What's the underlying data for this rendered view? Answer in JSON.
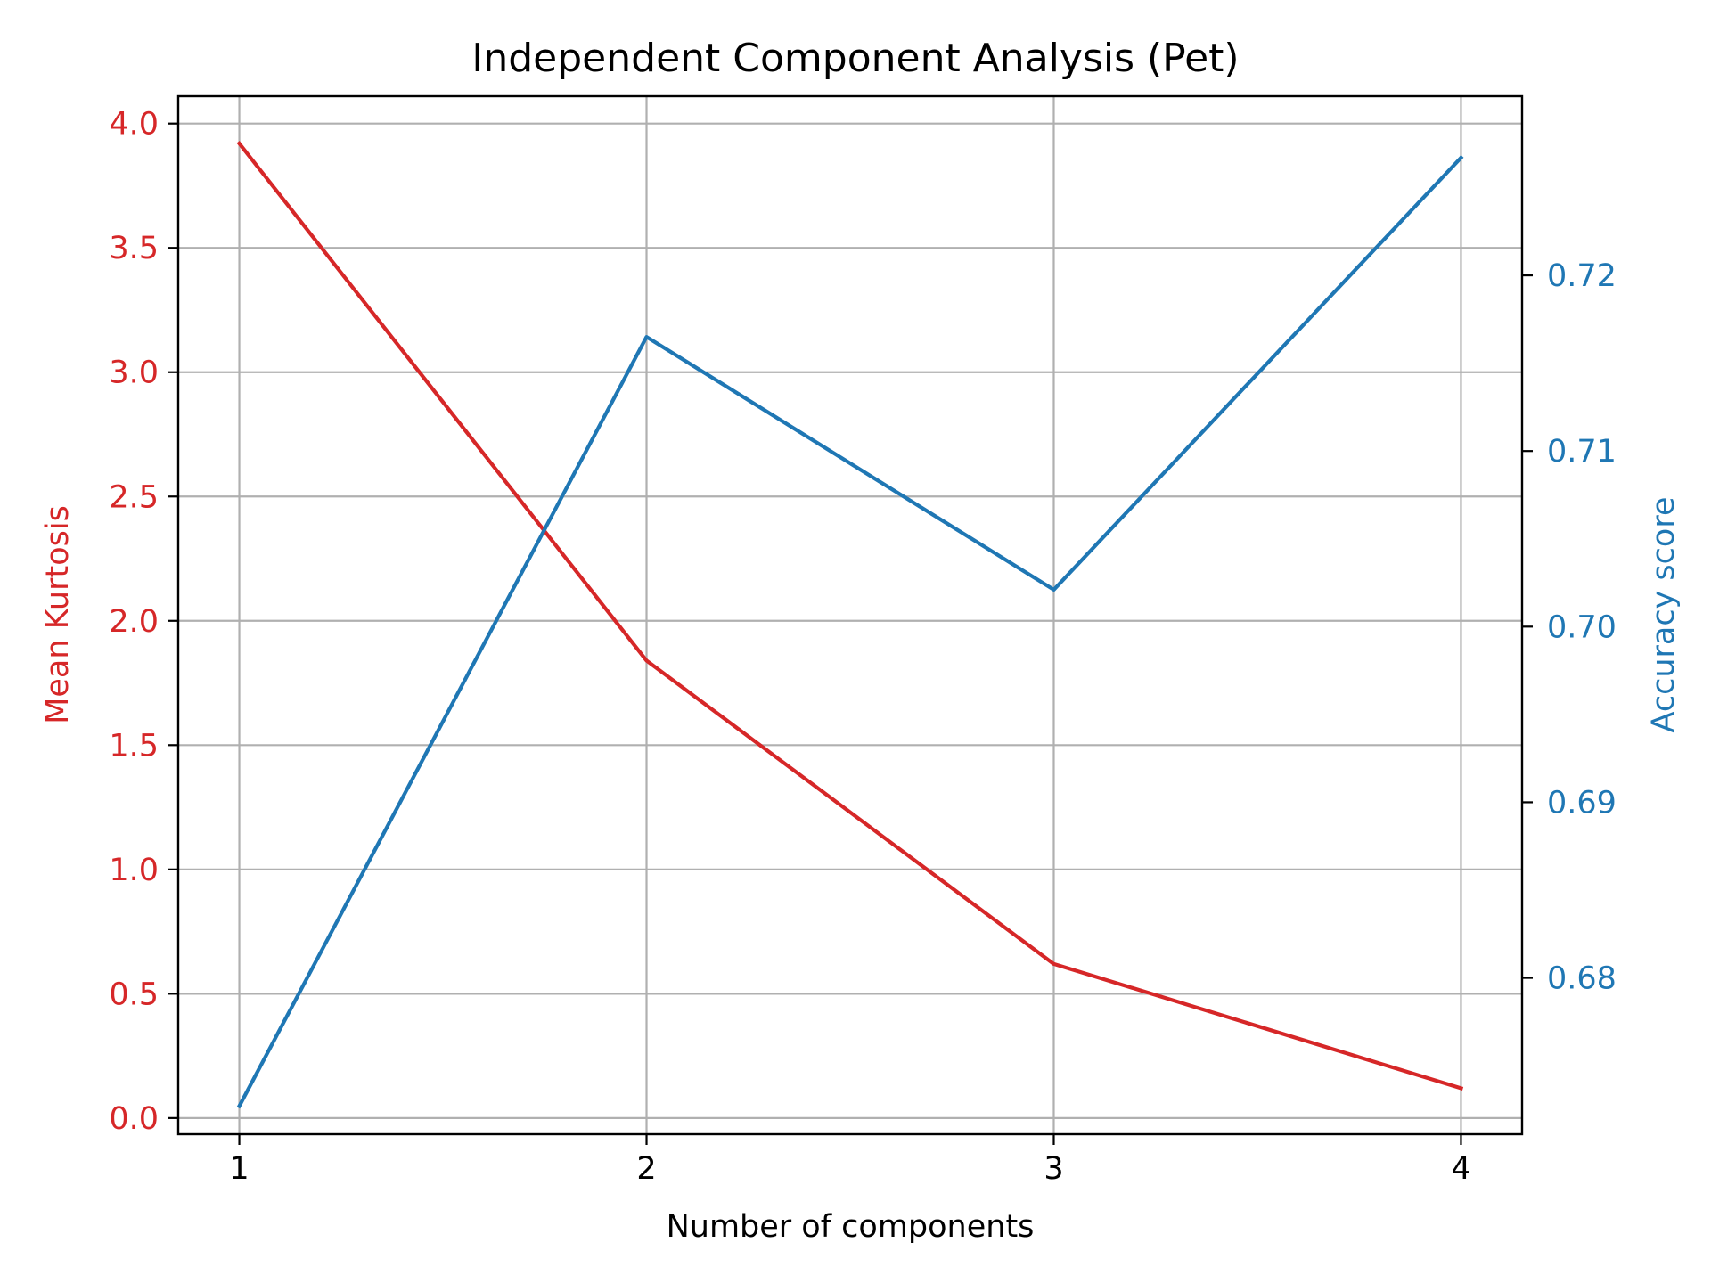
{
  "chart_data": {
    "type": "line",
    "title": "Independent Component Analysis (Pet)",
    "xlabel": "Number of components",
    "x": [
      1,
      2,
      3,
      4
    ],
    "x_ticks": [
      "1",
      "2",
      "3",
      "4"
    ],
    "xlim": [
      0.85,
      4.15
    ],
    "grid": true,
    "left_axis": {
      "label": "Mean Kurtosis",
      "color": "#d62728",
      "ylim": [
        -0.065,
        4.11
      ],
      "ticks": [
        0.0,
        0.5,
        1.0,
        1.5,
        2.0,
        2.5,
        3.0,
        3.5,
        4.0
      ],
      "tick_labels": [
        "0.0",
        "0.5",
        "1.0",
        "1.5",
        "2.0",
        "2.5",
        "3.0",
        "3.5",
        "4.0"
      ]
    },
    "right_axis": {
      "label": "Accuracy score",
      "color": "#1f77b4",
      "ylim": [
        0.6711,
        0.7302
      ],
      "ticks": [
        0.68,
        0.69,
        0.7,
        0.71,
        0.72
      ],
      "tick_labels": [
        "0.68",
        "0.69",
        "0.70",
        "0.71",
        "0.72"
      ]
    },
    "series": [
      {
        "axis": "left",
        "color": "#d62728",
        "values": [
          3.92,
          1.84,
          0.62,
          0.12
        ]
      },
      {
        "axis": "right",
        "color": "#1f77b4",
        "values": [
          0.6727,
          0.7165,
          0.7021,
          0.7267
        ]
      }
    ]
  }
}
